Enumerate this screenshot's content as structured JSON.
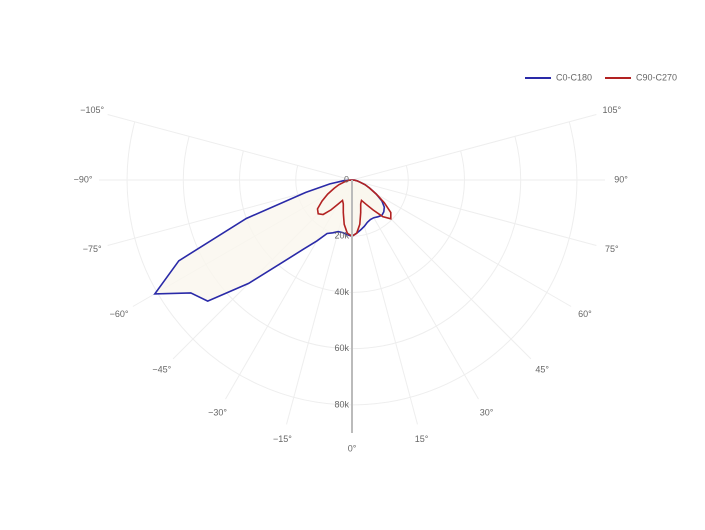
{
  "chart_data": {
    "type": "polar",
    "theta": [
      -90,
      -85,
      -80,
      -75,
      -70,
      -65,
      -60,
      -55,
      -50,
      -45,
      -40,
      -35,
      -30,
      -25,
      -20,
      -15,
      -10,
      -5,
      0,
      5,
      10,
      15,
      20,
      25,
      30,
      35,
      40,
      45,
      50,
      55,
      60,
      65,
      70,
      75,
      80,
      85,
      90
    ],
    "series": [
      {
        "name": "C0-C180",
        "color": "#2a2aa8",
        "values": [
          0,
          3000,
          8000,
          17000,
          40000,
          68000,
          81000,
          70000,
          67000,
          52000,
          38000,
          30000,
          25000,
          21000,
          20000,
          19000,
          19000,
          19500,
          20000,
          19000,
          18000,
          17000,
          16000,
          15500,
          15500,
          16000,
          16500,
          16000,
          15000,
          13000,
          10000,
          7000,
          5000,
          3000,
          2000,
          1000,
          0
        ]
      },
      {
        "name": "C90-C270",
        "color": "#b22222",
        "values": [
          0,
          1000,
          2000,
          3000,
          5000,
          7000,
          10000,
          13000,
          16000,
          17000,
          16000,
          13000,
          10000,
          8000,
          9000,
          12000,
          16000,
          19000,
          20000,
          19000,
          16000,
          12000,
          9000,
          8000,
          10000,
          13000,
          17000,
          19500,
          18000,
          14000,
          10000,
          7000,
          5000,
          3000,
          2000,
          1000,
          0
        ]
      }
    ],
    "rlim": [
      0,
      90000
    ],
    "rticks": [
      0,
      {
        "value": 20000,
        "label": "20k"
      },
      {
        "value": 40000,
        "label": "40k"
      },
      {
        "value": 60000,
        "label": "60k"
      },
      {
        "value": 80000,
        "label": "80k"
      }
    ],
    "thetaticks": [
      {
        "value": -105,
        "label": "−105°"
      },
      {
        "value": -90,
        "label": "−90°"
      },
      {
        "value": -75,
        "label": "−75°"
      },
      {
        "value": -60,
        "label": "−60°"
      },
      {
        "value": -45,
        "label": "−45°"
      },
      {
        "value": -30,
        "label": "−30°"
      },
      {
        "value": -15,
        "label": "−15°"
      },
      {
        "value": 0,
        "label": "0°"
      },
      {
        "value": 15,
        "label": "15°"
      },
      {
        "value": 30,
        "label": "30°"
      },
      {
        "value": 45,
        "label": "45°"
      },
      {
        "value": 60,
        "label": "60°"
      },
      {
        "value": 75,
        "label": "75°"
      },
      {
        "value": 90,
        "label": "90°"
      },
      {
        "value": 105,
        "label": "105°"
      }
    ],
    "fill": "#faf6ee",
    "grid": true,
    "legend": "top-right"
  }
}
